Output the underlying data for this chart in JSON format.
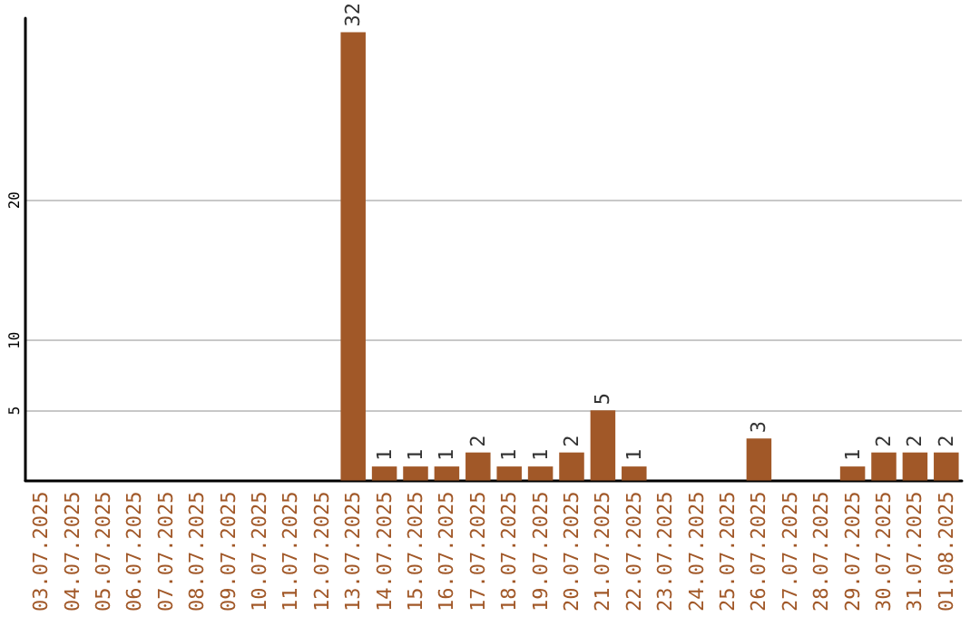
{
  "chart_data": {
    "type": "bar",
    "categories": [
      "03.07.2025",
      "04.07.2025",
      "05.07.2025",
      "06.07.2025",
      "07.07.2025",
      "08.07.2025",
      "09.07.2025",
      "10.07.2025",
      "11.07.2025",
      "12.07.2025",
      "13.07.2025",
      "14.07.2025",
      "15.07.2025",
      "16.07.2025",
      "17.07.2025",
      "18.07.2025",
      "19.07.2025",
      "20.07.2025",
      "21.07.2025",
      "22.07.2025",
      "23.07.2025",
      "24.07.2025",
      "25.07.2025",
      "26.07.2025",
      "27.07.2025",
      "28.07.2025",
      "29.07.2025",
      "30.07.2025",
      "31.07.2025",
      "01.08.2025"
    ],
    "values": [
      0,
      0,
      0,
      0,
      0,
      0,
      0,
      0,
      0,
      0,
      32,
      1,
      1,
      1,
      2,
      1,
      1,
      2,
      5,
      1,
      0,
      0,
      0,
      3,
      0,
      0,
      1,
      2,
      2,
      2
    ],
    "value_labels": [
      null,
      null,
      null,
      null,
      null,
      null,
      null,
      null,
      null,
      null,
      "32",
      "1",
      "1",
      "1",
      "2",
      "1",
      "1",
      "2",
      "5",
      "1",
      null,
      null,
      null,
      "3",
      null,
      null,
      "1",
      "2",
      "2",
      "2"
    ],
    "color": "#a15828",
    "ylim": [
      0,
      33
    ],
    "yticks": [
      5,
      10,
      20
    ],
    "grid": "y"
  }
}
